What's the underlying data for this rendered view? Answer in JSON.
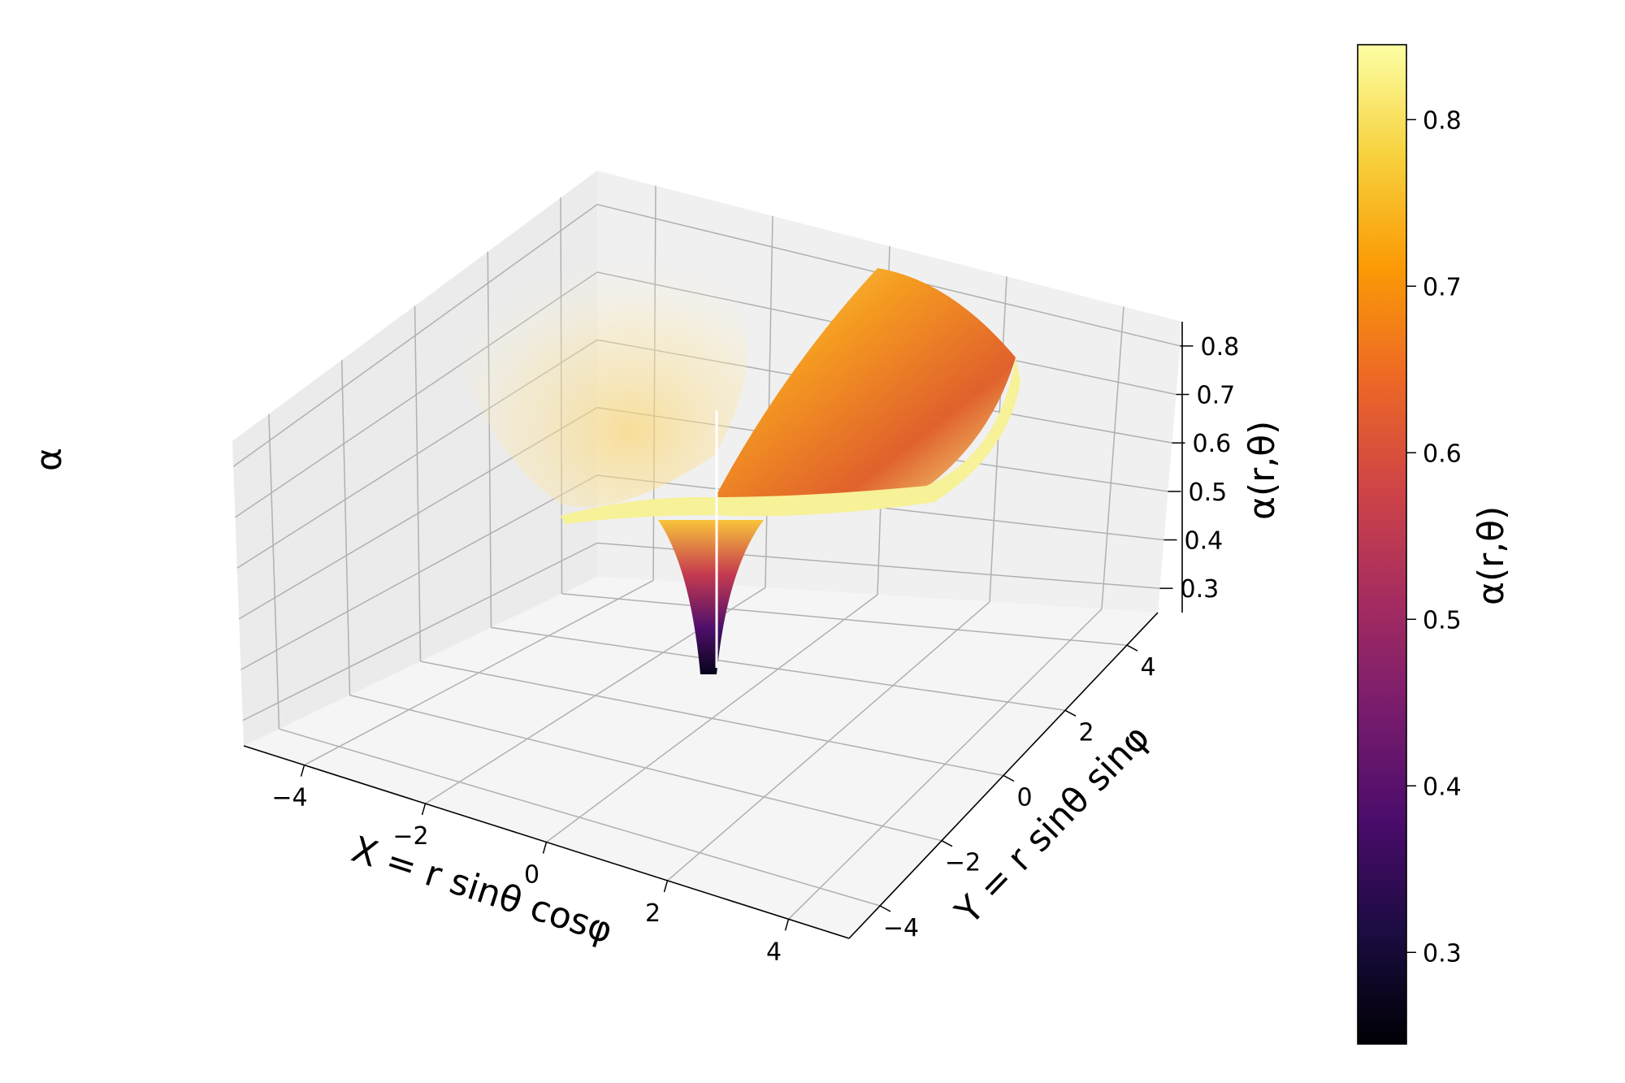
{
  "figure": {
    "side_label": "α"
  },
  "chart_data": {
    "type": "surface3d",
    "title": "",
    "xlabel": "X = r sinθ cosφ",
    "ylabel": "Y = r sinθ sinφ",
    "zlabel": "α(r,θ)",
    "xticks": [
      "−4",
      "−2",
      "0",
      "2",
      "4"
    ],
    "yticks": [
      "−4",
      "−2",
      "0",
      "2",
      "4"
    ],
    "zticks": [
      "0.3",
      "0.4",
      "0.5",
      "0.6",
      "0.7",
      "0.8"
    ],
    "xlim": [
      -5,
      5
    ],
    "ylim": [
      -5,
      5
    ],
    "zlim": [
      0.25,
      0.85
    ],
    "colormap": "inferno",
    "grid": true,
    "colorbar": {
      "label": "α(r,θ)",
      "ticks": [
        "0.3",
        "0.4",
        "0.5",
        "0.6",
        "0.7",
        "0.8"
      ],
      "range": [
        0.245,
        0.845
      ],
      "stops": [
        "#000004",
        "#1b0c41",
        "#4a0c6b",
        "#781c6d",
        "#a52c60",
        "#cf4446",
        "#ed6925",
        "#fb9b06",
        "#f7d13d",
        "#fcffa4"
      ]
    },
    "surface_points": [
      {
        "x": 0.0,
        "y": 0.0,
        "z": 0.25
      },
      {
        "x": 0.5,
        "y": 0.0,
        "z": 0.5
      },
      {
        "x": 1.0,
        "y": 0.0,
        "z": 0.62
      },
      {
        "x": 2.0,
        "y": 0.0,
        "z": 0.72
      },
      {
        "x": 3.0,
        "y": 0.0,
        "z": 0.78
      },
      {
        "x": 4.0,
        "y": 0.0,
        "z": 0.82
      },
      {
        "x": 5.0,
        "y": 0.0,
        "z": 0.84
      }
    ]
  }
}
